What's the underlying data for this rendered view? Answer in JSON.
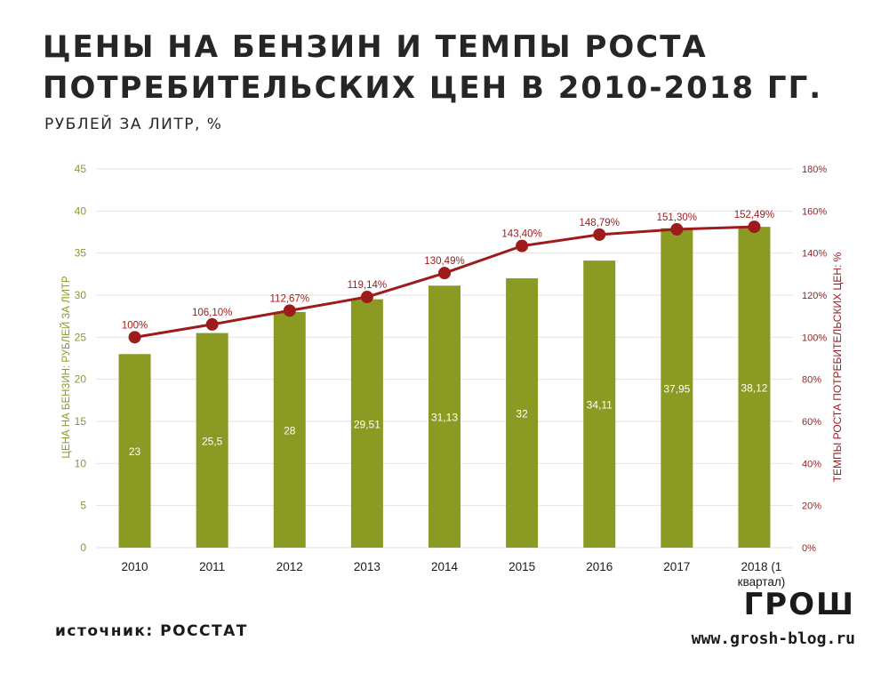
{
  "header": {
    "title": "ЦЕНЫ НА БЕНЗИН И ТЕМПЫ РОСТА ПОТРЕБИТЕЛЬСКИХ ЦЕН В 2010-2018 ГГ.",
    "subtitle": "РУБЛЕЙ ЗА ЛИТР, %"
  },
  "footer": {
    "source": "источник: РОССТАТ",
    "logo": "ГРОШ",
    "site": "www.grosh-blog.ru"
  },
  "colors": {
    "bar": "#8a9a23",
    "line": "#9e1b1b",
    "left_axis": "#8a9a23",
    "right_axis": "#9e1b1b",
    "grid": "#e2e2e2",
    "text": "#262626"
  },
  "chart_data": {
    "type": "bar+line",
    "categories": [
      "2010",
      "2011",
      "2012",
      "2013",
      "2014",
      "2015",
      "2016",
      "2017",
      "2018 (1 квартал)"
    ],
    "category_lines": [
      [
        "2010"
      ],
      [
        "2011"
      ],
      [
        "2012"
      ],
      [
        "2013"
      ],
      [
        "2014"
      ],
      [
        "2015"
      ],
      [
        "2016"
      ],
      [
        "2017"
      ],
      [
        "2018 (1",
        "квартал)"
      ]
    ],
    "series": [
      {
        "name": "ЦЕНА НА БЕНЗИН: РУБЛЕЙ ЗА ЛИТР",
        "type": "bar",
        "axis": "left",
        "values": [
          23,
          25.5,
          28,
          29.51,
          31.13,
          32,
          34.11,
          37.95,
          38.12
        ],
        "labels": [
          "23",
          "25,5",
          "28",
          "29,51",
          "31,13",
          "32",
          "34,11",
          "37,95",
          "38,12"
        ]
      },
      {
        "name": "ТЕМПЫ РОСТА ПОТРЕБИТЕЛЬСКИХ ЦЕН, %",
        "type": "line",
        "axis": "right",
        "values": [
          100,
          106.1,
          112.67,
          119.14,
          130.49,
          143.4,
          148.79,
          151.3,
          152.49
        ],
        "labels": [
          "100%",
          "106,10%",
          "112,67%",
          "119,14%",
          "130,49%",
          "143,40%",
          "148,79%",
          "151,30%",
          "152,49%"
        ]
      }
    ],
    "y_left": {
      "label": "ЦЕНА НА БЕНЗИН: РУБЛЕЙ ЗА ЛИТР",
      "range": [
        0,
        45
      ],
      "ticks": [
        "0",
        "5",
        "10",
        "15",
        "20",
        "25",
        "30",
        "35",
        "40",
        "45"
      ]
    },
    "y_right": {
      "label": "ТЕМПЫ РОСТА ПОТРЕБИТЕЛЬСКИХ ЦЕН: %",
      "range": [
        0,
        180
      ],
      "ticks": [
        "0%",
        "20%",
        "40%",
        "60%",
        "80%",
        "100%",
        "120%",
        "140%",
        "160%",
        "180%"
      ]
    },
    "grid": true
  }
}
